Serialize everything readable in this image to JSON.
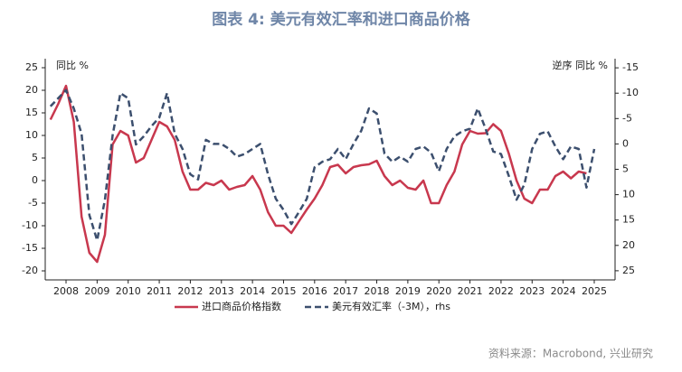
{
  "chart_data": {
    "type": "line",
    "title": "图表 4:  美元有效汇率和进口商品价格",
    "y_label": "同比 %",
    "y2_label": "逆序 同比 %",
    "source": "资料来源：Macrobond, 兴业研究",
    "x": [
      2008.0,
      2008.25,
      2008.5,
      2008.75,
      2009.0,
      2009.25,
      2009.5,
      2009.75,
      2010.0,
      2010.25,
      2010.5,
      2010.75,
      2011.0,
      2011.25,
      2011.5,
      2011.75,
      2012.0,
      2012.25,
      2012.5,
      2012.75,
      2013.0,
      2013.25,
      2013.5,
      2013.75,
      2014.0,
      2014.25,
      2014.5,
      2014.75,
      2015.0,
      2015.25,
      2015.5,
      2015.75,
      2016.0,
      2016.25,
      2016.5,
      2016.75,
      2017.0,
      2017.25,
      2017.5,
      2017.75,
      2018.0,
      2018.25,
      2018.5,
      2018.75,
      2019.0,
      2019.25,
      2019.5,
      2019.75,
      2020.0,
      2020.25,
      2020.5,
      2020.75,
      2021.0,
      2021.25,
      2021.5,
      2021.75,
      2022.0,
      2022.25,
      2022.5,
      2022.75,
      2023.0,
      2023.25,
      2023.5,
      2023.75,
      2024.0,
      2024.25,
      2024.5,
      2024.75,
      2025.0,
      2025.25,
      2025.5
    ],
    "series": [
      {
        "name": "进口商品价格指数",
        "color": "#c8384e",
        "dashed": false,
        "axis": "y",
        "values": [
          13.5,
          17,
          21,
          13,
          -8,
          -16,
          -18,
          -12,
          8,
          11,
          10,
          4,
          5,
          9,
          13,
          12,
          9,
          2,
          -2,
          -2,
          -0.5,
          -1,
          0,
          -2,
          -1.4,
          -1,
          1,
          -2,
          -7,
          -10,
          -10,
          -11.6,
          -9,
          -6.4,
          -4,
          -1,
          3,
          3.5,
          1.6,
          3,
          3.4,
          3.6,
          4.4,
          1,
          -1,
          0,
          -1.6,
          -2,
          0,
          -5,
          -5,
          -1,
          2,
          8,
          11,
          10.4,
          10.5,
          12.5,
          11,
          6,
          0,
          -4,
          -5,
          -2,
          -2,
          1,
          2,
          0.5,
          2,
          1.6,
          null
        ]
      },
      {
        "name": "美元有效汇率（-3M），rhs",
        "color": "#3c4f6e",
        "dashed": true,
        "axis": "y2",
        "values": [
          -7.4,
          -9,
          -10.6,
          -7,
          -2,
          14,
          19,
          11,
          -1.7,
          -10,
          -9,
          0.1,
          -1.5,
          -3.5,
          -5.2,
          -10,
          -2,
          1,
          6,
          7,
          -0.8,
          0,
          0,
          1,
          2.5,
          2,
          1,
          0,
          6,
          10.8,
          13,
          15.8,
          13.4,
          10.8,
          4.6,
          3.5,
          3,
          1,
          3,
          0,
          -2.6,
          -7,
          -6,
          1.9,
          3.5,
          2.5,
          3.5,
          1,
          0.5,
          1.7,
          5.4,
          1,
          -1.5,
          -2.5,
          -3,
          -7,
          -3,
          1.5,
          2,
          6.3,
          11,
          8,
          1,
          -2,
          -2.5,
          0.5,
          3,
          0.5,
          1,
          8.6,
          1
        ]
      }
    ],
    "xlim": [
      2007.83,
      2026.17
    ],
    "xticks": [
      {
        "value": 2008.5,
        "label": "2008"
      },
      {
        "value": 2009.5,
        "label": "2009"
      },
      {
        "value": 2010.5,
        "label": "2010"
      },
      {
        "value": 2011.5,
        "label": "2011"
      },
      {
        "value": 2012.5,
        "label": "2012"
      },
      {
        "value": 2013.5,
        "label": "2013"
      },
      {
        "value": 2014.5,
        "label": "2014"
      },
      {
        "value": 2015.5,
        "label": "2015"
      },
      {
        "value": 2016.5,
        "label": "2016"
      },
      {
        "value": 2017.5,
        "label": "2017"
      },
      {
        "value": 2018.5,
        "label": "2018"
      },
      {
        "value": 2019.5,
        "label": "2019"
      },
      {
        "value": 2020.5,
        "label": "2020"
      },
      {
        "value": 2021.5,
        "label": "2021"
      },
      {
        "value": 2022.5,
        "label": "2022"
      },
      {
        "value": 2023.5,
        "label": "2023"
      },
      {
        "value": 2024.5,
        "label": "2024"
      },
      {
        "value": 2025.5,
        "label": "2025"
      }
    ],
    "ylim": [
      -22,
      27
    ],
    "yticks": [
      25,
      20,
      15,
      10,
      5,
      0,
      -5,
      -10,
      -15,
      -20
    ],
    "y2lim": [
      26.8,
      -16.8
    ],
    "y2ticks": [
      -15,
      -10,
      -5,
      0,
      5,
      10,
      15,
      20,
      25
    ],
    "grid": false
  }
}
